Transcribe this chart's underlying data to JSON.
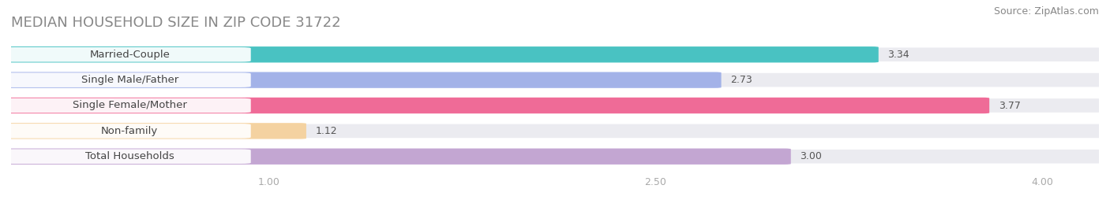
{
  "title": "MEDIAN HOUSEHOLD SIZE IN ZIP CODE 31722",
  "source": "Source: ZipAtlas.com",
  "categories": [
    "Married-Couple",
    "Single Male/Father",
    "Single Female/Mother",
    "Non-family",
    "Total Households"
  ],
  "values": [
    3.34,
    2.73,
    3.77,
    1.12,
    3.0
  ],
  "bar_colors": [
    "#3bbfbe",
    "#9daee8",
    "#f06090",
    "#f5d09a",
    "#c0a0d0"
  ],
  "xlim": [
    0,
    4.22
  ],
  "xlim_display": 4.0,
  "xticks": [
    1.0,
    2.5,
    4.0
  ],
  "background_color": "#ffffff",
  "bar_bg_color": "#ebebf0",
  "title_fontsize": 13,
  "source_fontsize": 9,
  "label_fontsize": 9.5,
  "value_fontsize": 9
}
